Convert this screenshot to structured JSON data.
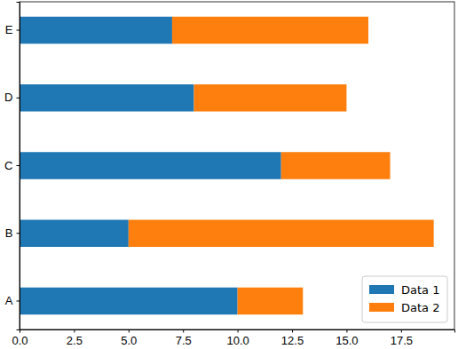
{
  "chart_data": {
    "type": "bar",
    "orientation": "horizontal",
    "stacked": true,
    "categories": [
      "A",
      "B",
      "C",
      "D",
      "E"
    ],
    "series": [
      {
        "name": "Data 1",
        "color": "#1f77b4",
        "values": [
          10,
          5,
          12,
          8,
          7
        ]
      },
      {
        "name": "Data 2",
        "color": "#ff7f0e",
        "values": [
          3,
          14,
          5,
          7,
          9
        ]
      }
    ],
    "xlim": [
      0,
      19.95
    ],
    "xticks": [
      {
        "value": 0,
        "label": "0.0"
      },
      {
        "value": 2.5,
        "label": "2.5"
      },
      {
        "value": 5,
        "label": "5.0"
      },
      {
        "value": 7.5,
        "label": "7.5"
      },
      {
        "value": 10,
        "label": "10.0"
      },
      {
        "value": 12.5,
        "label": "12.5"
      },
      {
        "value": 15,
        "label": "15.0"
      },
      {
        "value": 17.5,
        "label": "17.5"
      }
    ],
    "grid": false,
    "legend": "lower right"
  }
}
